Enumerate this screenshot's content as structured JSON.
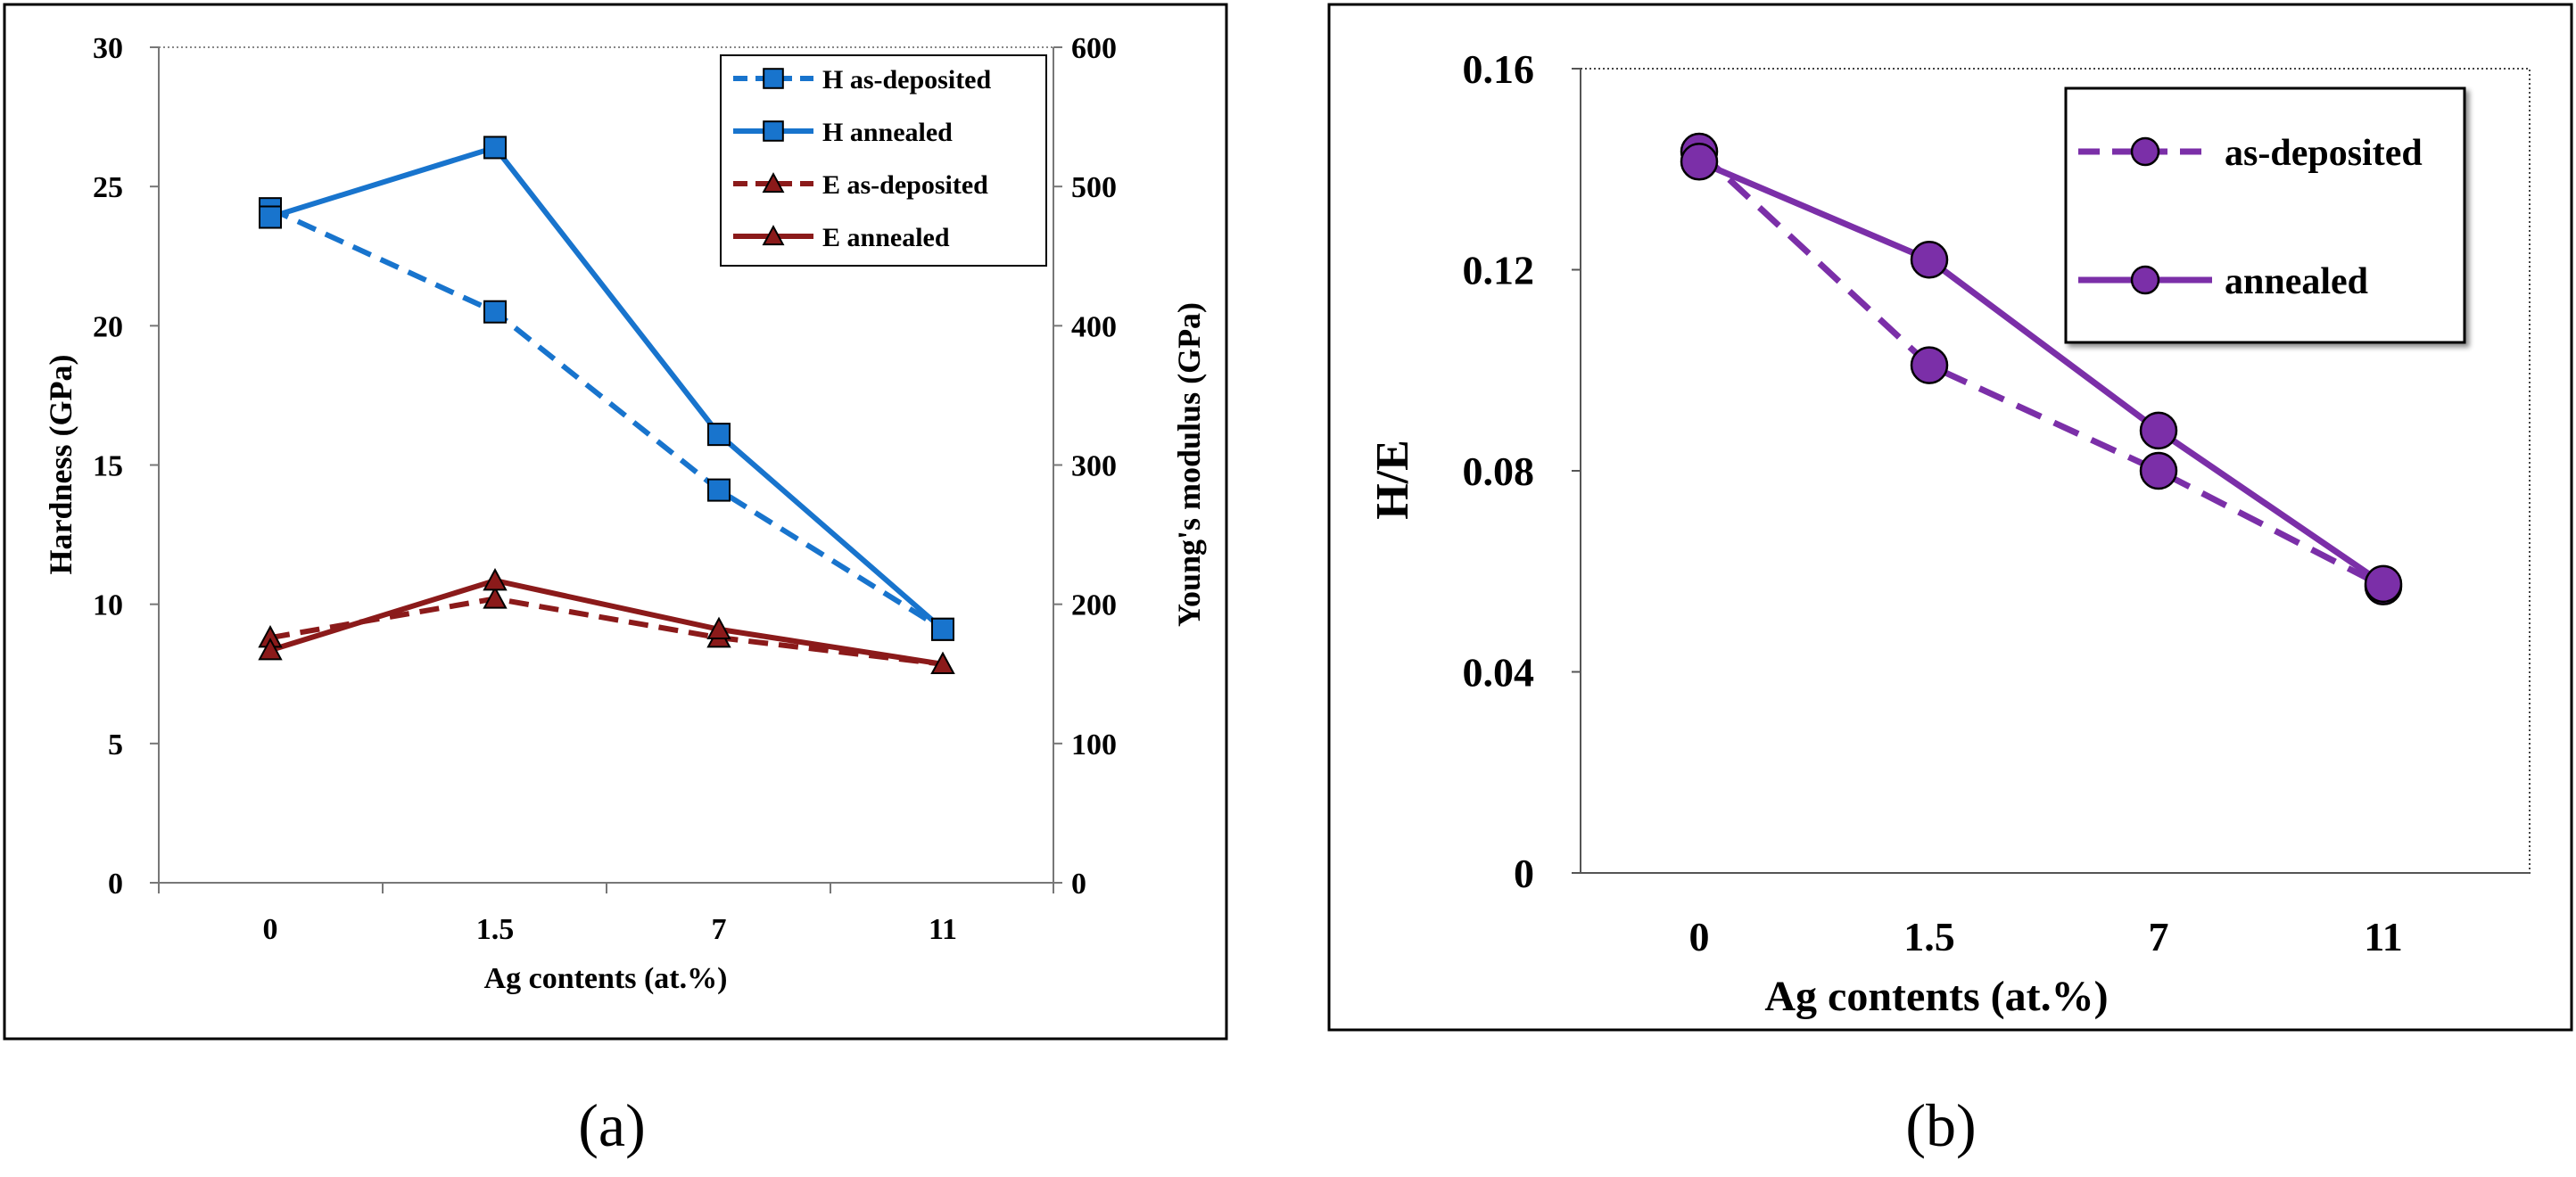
{
  "chart_data": [
    {
      "panel": "(a)",
      "type": "line",
      "categories": [
        "0",
        "1.5",
        "7",
        "11"
      ],
      "xlabel": "Ag contents (at.%)",
      "ylabel": "Hardness (GPa)",
      "ylabel_right": "Young's modulus (GPa)",
      "ylim": [
        0,
        30
      ],
      "yticks": [
        0,
        5,
        10,
        15,
        20,
        25,
        30
      ],
      "ylim_right": [
        0,
        600
      ],
      "yticks_right": [
        0,
        100,
        200,
        300,
        400,
        500,
        600
      ],
      "series": [
        {
          "name": "H as-deposited",
          "axis": "left",
          "style": "dashed",
          "marker": "square",
          "color": "#1874CD",
          "values": [
            24.2,
            20.5,
            14.1,
            9.1
          ]
        },
        {
          "name": "H annealed",
          "axis": "left",
          "style": "solid",
          "marker": "square",
          "color": "#1874CD",
          "values": [
            23.9,
            26.4,
            16.1,
            9.1
          ]
        },
        {
          "name": "E as-deposited",
          "axis": "right",
          "style": "dashed",
          "marker": "triangle",
          "color": "#8B1A1A",
          "values": [
            176,
            204,
            176,
            157
          ]
        },
        {
          "name": "E annealed",
          "axis": "right",
          "style": "solid",
          "marker": "triangle",
          "color": "#8B1A1A",
          "values": [
            167,
            217,
            182,
            157
          ]
        }
      ],
      "legend": "top-right"
    },
    {
      "panel": "(b)",
      "type": "line",
      "categories": [
        "0",
        "1.5",
        "7",
        "11"
      ],
      "xlabel": "Ag contents (at.%)",
      "ylabel": "H/E",
      "ylim": [
        0,
        0.16
      ],
      "yticks": [
        "0",
        "0.04",
        "0.08",
        "0.12",
        "0.16"
      ],
      "series": [
        {
          "name": "as-deposited",
          "style": "dashed",
          "marker": "circle",
          "color": "#7B2FA8",
          "values": [
            0.1435,
            0.101,
            0.08,
            0.057
          ]
        },
        {
          "name": "annealed",
          "style": "solid",
          "marker": "circle",
          "color": "#7B2FA8",
          "values": [
            0.1415,
            0.122,
            0.088,
            0.0575
          ]
        }
      ],
      "legend": "top-right"
    }
  ]
}
